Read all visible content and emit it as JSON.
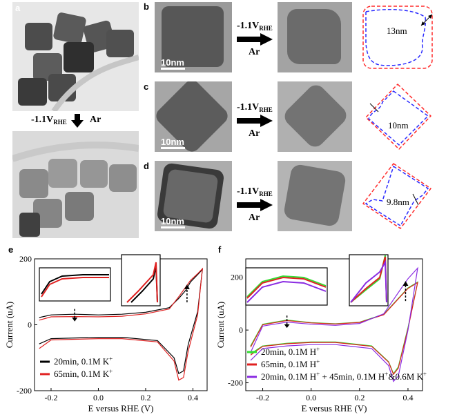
{
  "panels": {
    "a": "a",
    "b": "b",
    "c": "c",
    "d": "d",
    "e": "e",
    "f": "f"
  },
  "arrow_voltage": "-1.1V",
  "arrow_voltage_sub": "RHE",
  "arrow_gas": "Ar",
  "scale_bar_label": "10nm",
  "outline_annotations": {
    "b": "13nm",
    "c": "10nm",
    "d": "9.8nm"
  },
  "colors": {
    "outline_before": "#ff2a2a",
    "outline_after": "#2a2aff",
    "k_20min": "#000000",
    "k_65min": "#e02020",
    "h_20min": "#33dd33",
    "h_65min": "#e02020",
    "h_mixed": "#8a2be2"
  },
  "chart_data": [
    {
      "type": "line",
      "panel": "e",
      "xlabel": "E versus RHE (V)",
      "ylabel": "Current (uA)",
      "xlim": [
        -0.27,
        0.46
      ],
      "ylim": [
        -200,
        200
      ],
      "xticks": [
        "-0.2",
        "0.0",
        "0.2",
        "0.4"
      ],
      "yticks": [
        "200",
        "0",
        "-200"
      ],
      "series": [
        {
          "name": "20min, 0.1M K",
          "name_sup": "+",
          "upper": [
            [
              -0.25,
              22
            ],
            [
              -0.2,
              30
            ],
            [
              -0.1,
              32
            ],
            [
              0.0,
              30
            ],
            [
              0.1,
              32
            ],
            [
              0.2,
              38
            ],
            [
              0.3,
              52
            ],
            [
              0.34,
              80
            ],
            [
              0.37,
              105
            ],
            [
              0.39,
              130
            ],
            [
              0.42,
              152
            ],
            [
              0.44,
              168
            ]
          ],
          "lower": [
            [
              0.44,
              168
            ],
            [
              0.42,
              40
            ],
            [
              0.38,
              -60
            ],
            [
              0.36,
              -140
            ],
            [
              0.34,
              -148
            ],
            [
              0.32,
              -100
            ],
            [
              0.25,
              -48
            ],
            [
              0.1,
              -38
            ],
            [
              0.0,
              -38
            ],
            [
              -0.1,
              -40
            ],
            [
              -0.2,
              -42
            ],
            [
              -0.25,
              -58
            ]
          ]
        },
        {
          "name": "65min, 0.1M K",
          "name_sup": "+",
          "upper": [
            [
              -0.25,
              14
            ],
            [
              -0.2,
              24
            ],
            [
              -0.1,
              25
            ],
            [
              0.0,
              24
            ],
            [
              0.1,
              26
            ],
            [
              0.2,
              33
            ],
            [
              0.3,
              48
            ],
            [
              0.34,
              85
            ],
            [
              0.37,
              115
            ],
            [
              0.39,
              135
            ],
            [
              0.42,
              155
            ],
            [
              0.44,
              170
            ]
          ],
          "lower": [
            [
              0.44,
              170
            ],
            [
              0.42,
              30
            ],
            [
              0.38,
              -80
            ],
            [
              0.36,
              -160
            ],
            [
              0.34,
              -168
            ],
            [
              0.32,
              -110
            ],
            [
              0.25,
              -52
            ],
            [
              0.1,
              -42
            ],
            [
              0.0,
              -42
            ],
            [
              -0.1,
              -44
            ],
            [
              -0.2,
              -46
            ],
            [
              -0.25,
              -72
            ]
          ]
        }
      ]
    },
    {
      "type": "line",
      "panel": "f",
      "xlabel": "E versus RHE (V)",
      "ylabel": "Current (uA)",
      "xlim": [
        -0.27,
        0.46
      ],
      "ylim": [
        -230,
        270
      ],
      "xticks": [
        "-0.2",
        "0.0",
        "0.2",
        "0.4"
      ],
      "yticks": [
        "200",
        "0",
        "-200"
      ],
      "series": [
        {
          "name": "20min, 0.1M H",
          "name_sup": "+",
          "upper": [
            [
              -0.25,
              -60
            ],
            [
              -0.2,
              22
            ],
            [
              -0.1,
              38
            ],
            [
              0.0,
              28
            ],
            [
              0.1,
              24
            ],
            [
              0.2,
              30
            ],
            [
              0.3,
              60
            ],
            [
              0.34,
              100
            ],
            [
              0.37,
              130
            ],
            [
              0.4,
              160
            ],
            [
              0.44,
              182
            ]
          ],
          "lower": [
            [
              0.44,
              182
            ],
            [
              0.4,
              10
            ],
            [
              0.36,
              -140
            ],
            [
              0.34,
              -165
            ],
            [
              0.32,
              -120
            ],
            [
              0.25,
              -60
            ],
            [
              0.1,
              -45
            ],
            [
              0.0,
              -45
            ],
            [
              -0.1,
              -50
            ],
            [
              -0.2,
              -60
            ],
            [
              -0.25,
              -90
            ]
          ]
        },
        {
          "name": "65min, 0.1M H",
          "name_sup": "+",
          "upper": [
            [
              -0.25,
              -65
            ],
            [
              -0.2,
              20
            ],
            [
              -0.1,
              36
            ],
            [
              0.0,
              27
            ],
            [
              0.1,
              23
            ],
            [
              0.2,
              29
            ],
            [
              0.3,
              58
            ],
            [
              0.34,
              98
            ],
            [
              0.37,
              128
            ],
            [
              0.4,
              158
            ],
            [
              0.44,
              180
            ]
          ],
          "lower": [
            [
              0.44,
              180
            ],
            [
              0.4,
              5
            ],
            [
              0.36,
              -145
            ],
            [
              0.34,
              -168
            ],
            [
              0.32,
              -122
            ],
            [
              0.25,
              -62
            ],
            [
              0.1,
              -47
            ],
            [
              0.0,
              -47
            ],
            [
              -0.1,
              -52
            ],
            [
              -0.2,
              -62
            ],
            [
              -0.25,
              -95
            ]
          ]
        },
        {
          "name": "20min, 0.1M H",
          "name_sup": "+",
          "name_rest": " + 45min, 0.1M H",
          "name_sup2": "+",
          "name_tail": "&0.6M K",
          "name_sup3": "+",
          "upper": [
            [
              -0.25,
              -85
            ],
            [
              -0.2,
              15
            ],
            [
              -0.1,
              30
            ],
            [
              0.0,
              22
            ],
            [
              0.1,
              18
            ],
            [
              0.2,
              25
            ],
            [
              0.3,
              62
            ],
            [
              0.34,
              115
            ],
            [
              0.37,
              155
            ],
            [
              0.4,
              195
            ],
            [
              0.44,
              235
            ]
          ],
          "lower": [
            [
              0.44,
              235
            ],
            [
              0.4,
              0
            ],
            [
              0.36,
              -175
            ],
            [
              0.34,
              -195
            ],
            [
              0.32,
              -135
            ],
            [
              0.25,
              -70
            ],
            [
              0.1,
              -55
            ],
            [
              0.0,
              -55
            ],
            [
              -0.1,
              -60
            ],
            [
              -0.2,
              -70
            ],
            [
              -0.25,
              -115
            ]
          ]
        }
      ]
    }
  ]
}
